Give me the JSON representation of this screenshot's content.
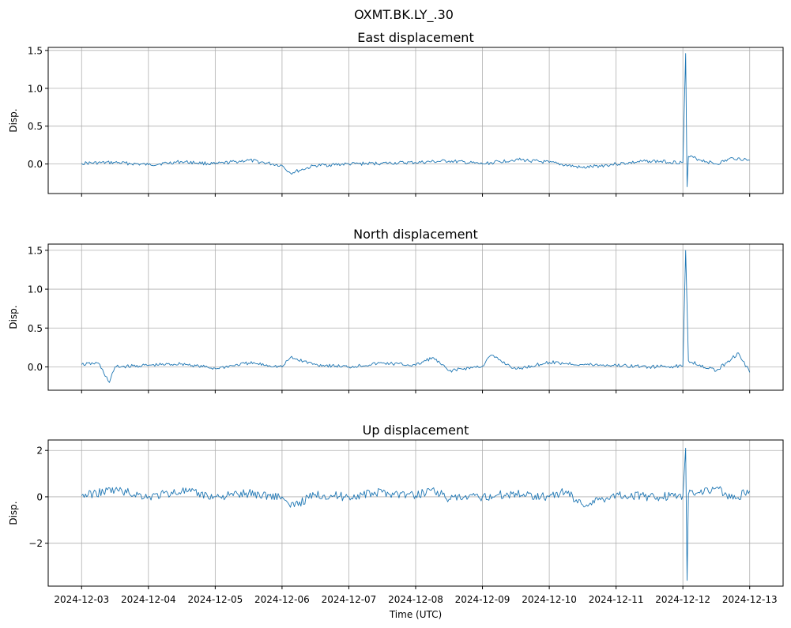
{
  "chart_data": {
    "type": "line",
    "suptitle": "OXMT.BK.LY_.30",
    "xlabel": "Time (UTC)",
    "x_ticks": [
      "2024-12-03",
      "2024-12-04",
      "2024-12-05",
      "2024-12-06",
      "2024-12-07",
      "2024-12-08",
      "2024-12-09",
      "2024-12-10",
      "2024-12-11",
      "2024-12-12",
      "2024-12-13"
    ],
    "x_range": [
      "2024-12-03",
      "2024-12-13"
    ],
    "grid": true,
    "color": "#1f77b4",
    "panels": [
      {
        "title": "East displacement",
        "ylabel": "Disp.",
        "ylim": [
          -0.39,
          1.54
        ],
        "y_ticks": [
          0.0,
          0.5,
          1.0,
          1.5
        ],
        "y_tick_labels": [
          "0.0",
          "0.5",
          "1.0",
          "1.5"
        ],
        "x": [
          "2024-12-03 00:00",
          "2024-12-03 12:00",
          "2024-12-04 00:00",
          "2024-12-04 12:00",
          "2024-12-05 00:00",
          "2024-12-05 12:00",
          "2024-12-06 00:00",
          "2024-12-06 03:00",
          "2024-12-06 12:00",
          "2024-12-07 00:00",
          "2024-12-07 12:00",
          "2024-12-08 00:00",
          "2024-12-08 12:00",
          "2024-12-09 00:00",
          "2024-12-09 12:00",
          "2024-12-10 00:00",
          "2024-12-10 12:00",
          "2024-12-11 00:00",
          "2024-12-11 12:00",
          "2024-12-12 00:00",
          "2024-12-12 01:00",
          "2024-12-12 01:30",
          "2024-12-12 02:00",
          "2024-12-12 12:00",
          "2024-12-12 18:00",
          "2024-12-13 00:00"
        ],
        "y": [
          0.01,
          0.02,
          -0.01,
          0.03,
          0.0,
          0.05,
          -0.02,
          -0.12,
          -0.02,
          0.0,
          0.01,
          0.02,
          0.04,
          0.0,
          0.06,
          0.02,
          -0.05,
          0.0,
          0.04,
          0.02,
          1.46,
          -0.3,
          0.1,
          0.0,
          0.08,
          0.05
        ]
      },
      {
        "title": "North displacement",
        "ylabel": "Disp.",
        "ylim": [
          -0.3,
          1.58
        ],
        "y_ticks": [
          0.0,
          0.5,
          1.0,
          1.5
        ],
        "y_tick_labels": [
          "0.0",
          "0.5",
          "1.0",
          "1.5"
        ],
        "x": [
          "2024-12-03 00:00",
          "2024-12-03 06:00",
          "2024-12-03 10:00",
          "2024-12-03 12:00",
          "2024-12-04 00:00",
          "2024-12-04 12:00",
          "2024-12-05 00:00",
          "2024-12-05 12:00",
          "2024-12-06 00:00",
          "2024-12-06 03:00",
          "2024-12-06 12:00",
          "2024-12-07 00:00",
          "2024-12-07 12:00",
          "2024-12-08 00:00",
          "2024-12-08 06:00",
          "2024-12-08 12:00",
          "2024-12-09 00:00",
          "2024-12-09 03:00",
          "2024-12-09 12:00",
          "2024-12-10 00:00",
          "2024-12-10 12:00",
          "2024-12-11 00:00",
          "2024-12-11 12:00",
          "2024-12-12 00:00",
          "2024-12-12 01:00",
          "2024-12-12 02:00",
          "2024-12-12 12:00",
          "2024-12-12 20:00",
          "2024-12-13 00:00"
        ],
        "y": [
          0.03,
          0.05,
          -0.2,
          0.0,
          0.02,
          0.04,
          -0.02,
          0.05,
          0.0,
          0.12,
          0.03,
          0.0,
          0.05,
          0.02,
          0.12,
          -0.05,
          0.01,
          0.15,
          -0.03,
          0.06,
          0.03,
          0.02,
          0.0,
          0.01,
          1.5,
          0.08,
          -0.05,
          0.18,
          -0.07
        ]
      },
      {
        "title": "Up displacement",
        "ylabel": "Disp.",
        "ylim": [
          -3.85,
          2.45
        ],
        "y_ticks": [
          -2,
          0,
          2
        ],
        "y_tick_labels": [
          "−2",
          "0",
          "2"
        ],
        "x": [
          "2024-12-03 00:00",
          "2024-12-03 12:00",
          "2024-12-04 00:00",
          "2024-12-04 12:00",
          "2024-12-05 00:00",
          "2024-12-05 12:00",
          "2024-12-06 00:00",
          "2024-12-06 03:00",
          "2024-12-06 12:00",
          "2024-12-07 00:00",
          "2024-12-07 12:00",
          "2024-12-08 00:00",
          "2024-12-08 06:00",
          "2024-12-08 12:00",
          "2024-12-09 00:00",
          "2024-12-09 12:00",
          "2024-12-10 00:00",
          "2024-12-10 06:00",
          "2024-12-10 12:00",
          "2024-12-11 00:00",
          "2024-12-11 12:00",
          "2024-12-12 00:00",
          "2024-12-12 01:00",
          "2024-12-12 01:30",
          "2024-12-12 02:00",
          "2024-12-12 12:00",
          "2024-12-12 18:00",
          "2024-12-13 00:00"
        ],
        "y": [
          0.05,
          0.3,
          0.0,
          0.25,
          0.0,
          0.15,
          0.0,
          -0.45,
          0.1,
          0.0,
          0.2,
          0.05,
          0.35,
          -0.1,
          0.0,
          0.15,
          0.0,
          0.25,
          -0.35,
          0.1,
          0.0,
          0.05,
          2.1,
          -3.6,
          0.1,
          0.4,
          -0.1,
          0.25
        ]
      }
    ]
  }
}
